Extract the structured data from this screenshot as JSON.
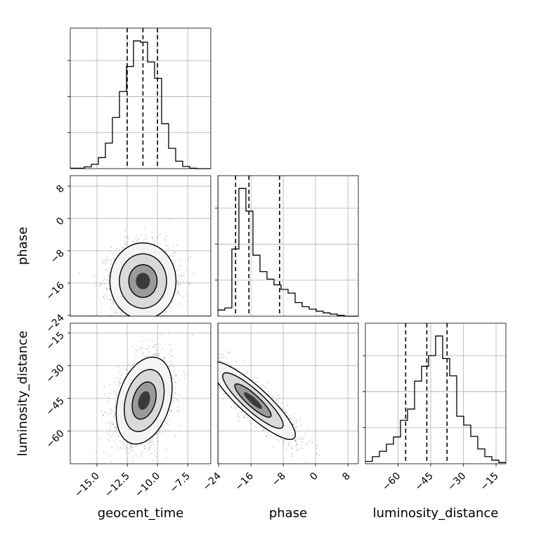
{
  "chart_data": {
    "type": "corner",
    "parameters": [
      "geocent_time",
      "phase",
      "luminosity_distance"
    ],
    "axis_labels": {
      "x": [
        "geocent_time",
        "phase",
        "luminosity_distance"
      ],
      "y_phase": "phase",
      "y_luminosity_distance": "luminosity_distance"
    },
    "ranges": {
      "geocent_time": [
        -17.2,
        -5.6
      ],
      "phase": [
        -24.2,
        10.6
      ],
      "luminosity_distance": [
        -75.0,
        -10.5
      ]
    },
    "ticks": {
      "geocent_time": [
        -15.0,
        -12.5,
        -10.0,
        -7.5
      ],
      "phase": [
        -24,
        -16,
        -8,
        0,
        8
      ],
      "luminosity_distance": [
        -60,
        -45,
        -30,
        -15
      ],
      "phase_y": [
        -24,
        -16,
        -8,
        0,
        8
      ],
      "luminosity_distance_y": [
        -60,
        -45,
        -30,
        -15
      ]
    },
    "tick_labels": {
      "geocent_time": [
        "−15.0",
        "−12.5",
        "−10.0",
        "−7.5"
      ],
      "phase": [
        "−24",
        "−16",
        "−8",
        "0",
        "8"
      ],
      "luminosity_distance": [
        "−60",
        "−45",
        "−30",
        "−15"
      ],
      "phase_y": [
        "−24",
        "−16",
        "−8",
        "0",
        "8"
      ],
      "luminosity_distance_y": [
        "−60",
        "−45",
        "−30",
        "−15"
      ]
    },
    "quantiles": {
      "geocent_time": [
        -12.5,
        -11.2,
        -10.0
      ],
      "phase": [
        -19.8,
        -16.5,
        -8.9
      ],
      "luminosity_distance": [
        -56.5,
        -46.8,
        -37.5
      ]
    },
    "histograms": {
      "geocent_time": {
        "bin_edges": [
          -17.2,
          -16.62,
          -16.04,
          -15.46,
          -14.88,
          -14.3,
          -13.72,
          -13.14,
          -12.56,
          -11.98,
          -11.4,
          -10.82,
          -10.24,
          -9.66,
          -9.08,
          -8.5,
          -7.92,
          -7.34,
          -6.76,
          -6.18,
          -5.6
        ],
        "counts": [
          1,
          1,
          4,
          10,
          25,
          58,
          116,
          175,
          232,
          290,
          287,
          242,
          205,
          102,
          46,
          17,
          5,
          1,
          0,
          0
        ]
      },
      "phase": {
        "bin_edges": [
          -24.2,
          -22.46,
          -20.72,
          -18.98,
          -17.24,
          -15.5,
          -13.76,
          -12.02,
          -10.28,
          -8.54,
          -6.8,
          -5.06,
          -3.32,
          -1.58,
          0.16,
          1.9,
          3.64,
          5.38,
          7.12,
          8.86,
          10.6
        ],
        "counts": [
          15,
          20,
          163,
          310,
          255,
          148,
          108,
          90,
          76,
          65,
          56,
          33,
          23,
          17,
          12,
          8,
          5,
          2,
          0,
          0
        ]
      },
      "luminosity_distance": {
        "bin_edges": [
          -75.0,
          -71.775,
          -68.55,
          -65.325,
          -62.1,
          -58.875,
          -55.65,
          -52.425,
          -49.2,
          -45.975,
          -42.75,
          -39.525,
          -36.3,
          -33.075,
          -29.85,
          -26.625,
          -23.4,
          -20.175,
          -16.95,
          -13.725,
          -10.5
        ],
        "counts": [
          4,
          12,
          21,
          33,
          45,
          73,
          92,
          139,
          164,
          182,
          215,
          177,
          148,
          80,
          65,
          46,
          25,
          12,
          6,
          2
        ]
      }
    },
    "density_panels": [
      {
        "x": "geocent_time",
        "y": "phase",
        "center": [
          -11.2,
          -15.5
        ],
        "sigma": [
          1.3,
          4.5
        ],
        "correlation": 0.0
      },
      {
        "x": "geocent_time",
        "y": "luminosity_distance",
        "center": [
          -11.1,
          -46.0
        ],
        "sigma": [
          1.1,
          9.5
        ],
        "correlation": 0.3
      },
      {
        "x": "phase",
        "y": "luminosity_distance",
        "center": [
          -15.5,
          -46.0
        ],
        "sigma": [
          5.0,
          8.5
        ],
        "correlation": -0.88
      }
    ],
    "grid": true,
    "colors": {
      "hist_line": "#000000",
      "quantile_line": "#000000",
      "grid": "#b0b0b0",
      "scatter": "#808080"
    }
  }
}
